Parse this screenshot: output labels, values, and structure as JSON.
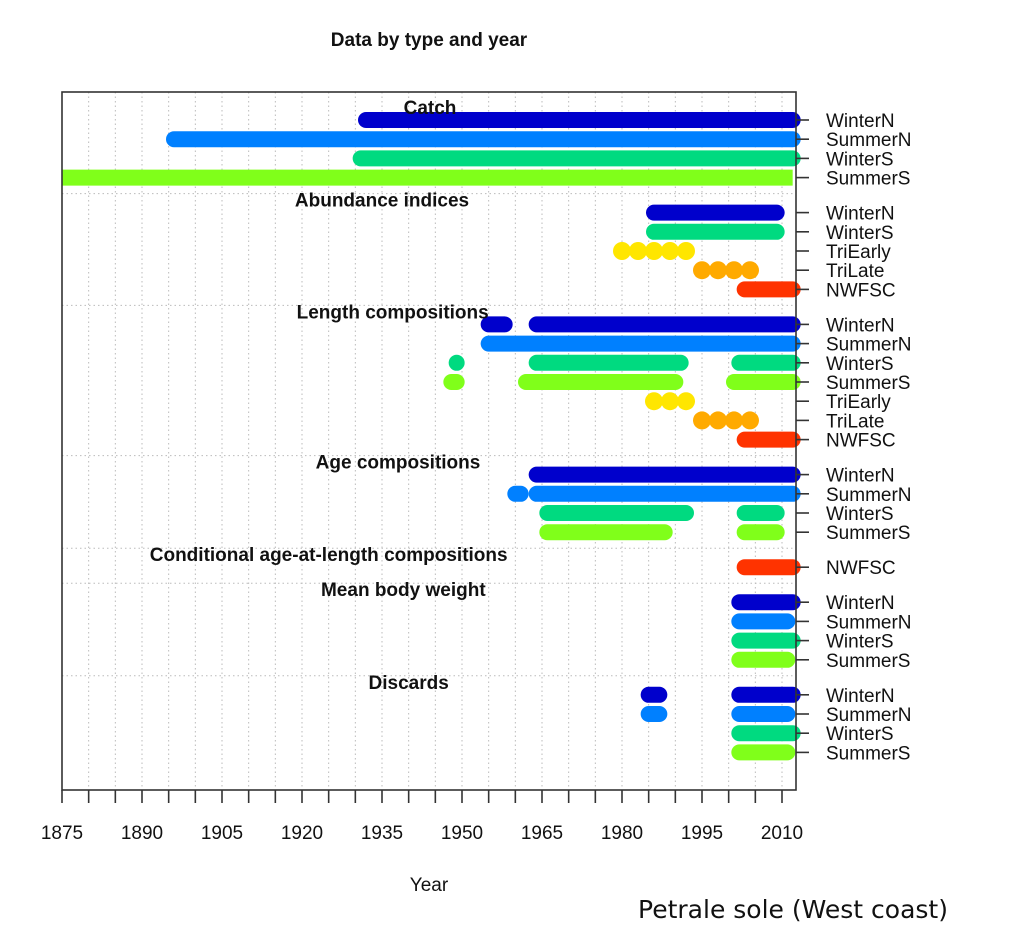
{
  "chart_data": {
    "type": "timeline",
    "title": "Data by type and year",
    "xlabel": "Year",
    "ylabel": "",
    "caption": "Petrale sole (West coast)",
    "xlim": [
      1875,
      2012
    ],
    "x_ticks": [
      1875,
      1880,
      1885,
      1890,
      1895,
      1900,
      1905,
      1910,
      1915,
      1920,
      1925,
      1930,
      1935,
      1940,
      1945,
      1950,
      1955,
      1960,
      1965,
      1970,
      1975,
      1980,
      1985,
      1990,
      1995,
      2000,
      2005,
      2010
    ],
    "x_tick_labels": [
      "1875",
      "1890",
      "1905",
      "1920",
      "1935",
      "1950",
      "1965",
      "1980",
      "1995",
      "2010"
    ],
    "grid": true,
    "fleet_colors": {
      "WinterN": "#0000CC",
      "SummerN": "#0080FF",
      "WinterS": "#00DA80",
      "SummerS": "#80FF1A",
      "TriEarly": "#FFE600",
      "TriLate": "#FFAA00",
      "NWFSC": "#FF3300"
    },
    "sections": [
      {
        "name": "Catch",
        "rows": [
          {
            "fleet": "WinterN",
            "segments": [
              [
                1932,
                2012
              ]
            ]
          },
          {
            "fleet": "SummerN",
            "segments": [
              [
                1896,
                2012
              ]
            ]
          },
          {
            "fleet": "WinterS",
            "segments": [
              [
                1931,
                2012
              ]
            ]
          },
          {
            "fleet": "SummerS",
            "segments": [
              [
                1875,
                2012
              ]
            ]
          }
        ]
      },
      {
        "name": "Abundance indices",
        "rows": [
          {
            "fleet": "WinterN",
            "segments": [
              [
                1986,
                2009
              ]
            ]
          },
          {
            "fleet": "WinterS",
            "segments": [
              [
                1986,
                2009
              ]
            ]
          },
          {
            "fleet": "TriEarly",
            "points": [
              1980,
              1983,
              1986,
              1989,
              1992
            ]
          },
          {
            "fleet": "TriLate",
            "points": [
              1995,
              1998,
              2001,
              2004
            ]
          },
          {
            "fleet": "NWFSC",
            "segments": [
              [
                2003,
                2012
              ]
            ]
          }
        ]
      },
      {
        "name": "Length compositions",
        "rows": [
          {
            "fleet": "WinterN",
            "segments": [
              [
                1955,
                1958
              ],
              [
                1964,
                2012
              ]
            ]
          },
          {
            "fleet": "SummerN",
            "segments": [
              [
                1955,
                2012
              ]
            ]
          },
          {
            "fleet": "WinterS",
            "segments": [
              [
                1949,
                1949
              ],
              [
                1964,
                1991
              ],
              [
                2002,
                2012
              ]
            ]
          },
          {
            "fleet": "SummerS",
            "segments": [
              [
                1948,
                1949
              ],
              [
                1962,
                1990
              ],
              [
                2001,
                2012
              ]
            ]
          },
          {
            "fleet": "TriEarly",
            "points": [
              1986,
              1989,
              1992
            ]
          },
          {
            "fleet": "TriLate",
            "points": [
              1995,
              1998,
              2001,
              2004
            ]
          },
          {
            "fleet": "NWFSC",
            "segments": [
              [
                2003,
                2012
              ]
            ]
          }
        ]
      },
      {
        "name": "Age compositions",
        "rows": [
          {
            "fleet": "WinterN",
            "segments": [
              [
                1964,
                2012
              ]
            ]
          },
          {
            "fleet": "SummerN",
            "segments": [
              [
                1960,
                1961
              ],
              [
                1964,
                2012
              ]
            ]
          },
          {
            "fleet": "WinterS",
            "segments": [
              [
                1966,
                1992
              ],
              [
                2003,
                2009
              ]
            ]
          },
          {
            "fleet": "SummerS",
            "segments": [
              [
                1966,
                1988
              ],
              [
                2003,
                2009
              ]
            ]
          }
        ]
      },
      {
        "name": "Conditional age-at-length compositions",
        "rows": [
          {
            "fleet": "NWFSC",
            "segments": [
              [
                2003,
                2012
              ]
            ]
          }
        ]
      },
      {
        "name": "Mean body weight",
        "rows": [
          {
            "fleet": "WinterN",
            "segments": [
              [
                2002,
                2012
              ]
            ]
          },
          {
            "fleet": "SummerN",
            "segments": [
              [
                2002,
                2011
              ]
            ]
          },
          {
            "fleet": "WinterS",
            "segments": [
              [
                2002,
                2012
              ]
            ]
          },
          {
            "fleet": "SummerS",
            "segments": [
              [
                2002,
                2011
              ]
            ]
          }
        ]
      },
      {
        "name": "Discards",
        "rows": [
          {
            "fleet": "WinterN",
            "segments": [
              [
                1985,
                1987
              ],
              [
                2002,
                2012
              ]
            ]
          },
          {
            "fleet": "SummerN",
            "segments": [
              [
                1985,
                1987
              ],
              [
                2002,
                2011
              ]
            ]
          },
          {
            "fleet": "WinterS",
            "segments": [
              [
                2002,
                2012
              ]
            ]
          },
          {
            "fleet": "SummerS",
            "segments": [
              [
                2002,
                2011
              ]
            ]
          }
        ]
      }
    ]
  }
}
